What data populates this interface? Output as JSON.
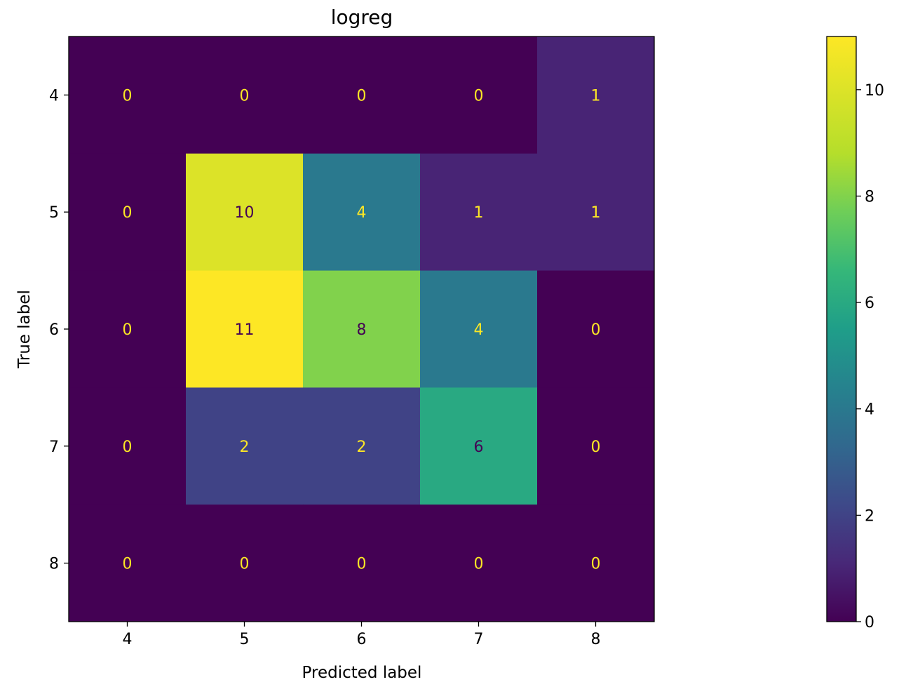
{
  "chart_data": {
    "type": "heatmap",
    "title": "logreg",
    "xlabel": "Predicted label",
    "ylabel": "True label",
    "x_categories": [
      "4",
      "5",
      "6",
      "7",
      "8"
    ],
    "y_categories": [
      "4",
      "5",
      "6",
      "7",
      "8"
    ],
    "values": [
      [
        0,
        0,
        0,
        0,
        1
      ],
      [
        0,
        10,
        4,
        1,
        1
      ],
      [
        0,
        11,
        8,
        4,
        0
      ],
      [
        0,
        2,
        2,
        6,
        0
      ],
      [
        0,
        0,
        0,
        0,
        0
      ]
    ],
    "colormap": "viridis",
    "vmin": 0,
    "vmax": 11,
    "colorbar_ticks": [
      "0",
      "2",
      "4",
      "6",
      "8",
      "10"
    ],
    "text_color_low": "#fde725",
    "text_color_high": "#440154"
  }
}
